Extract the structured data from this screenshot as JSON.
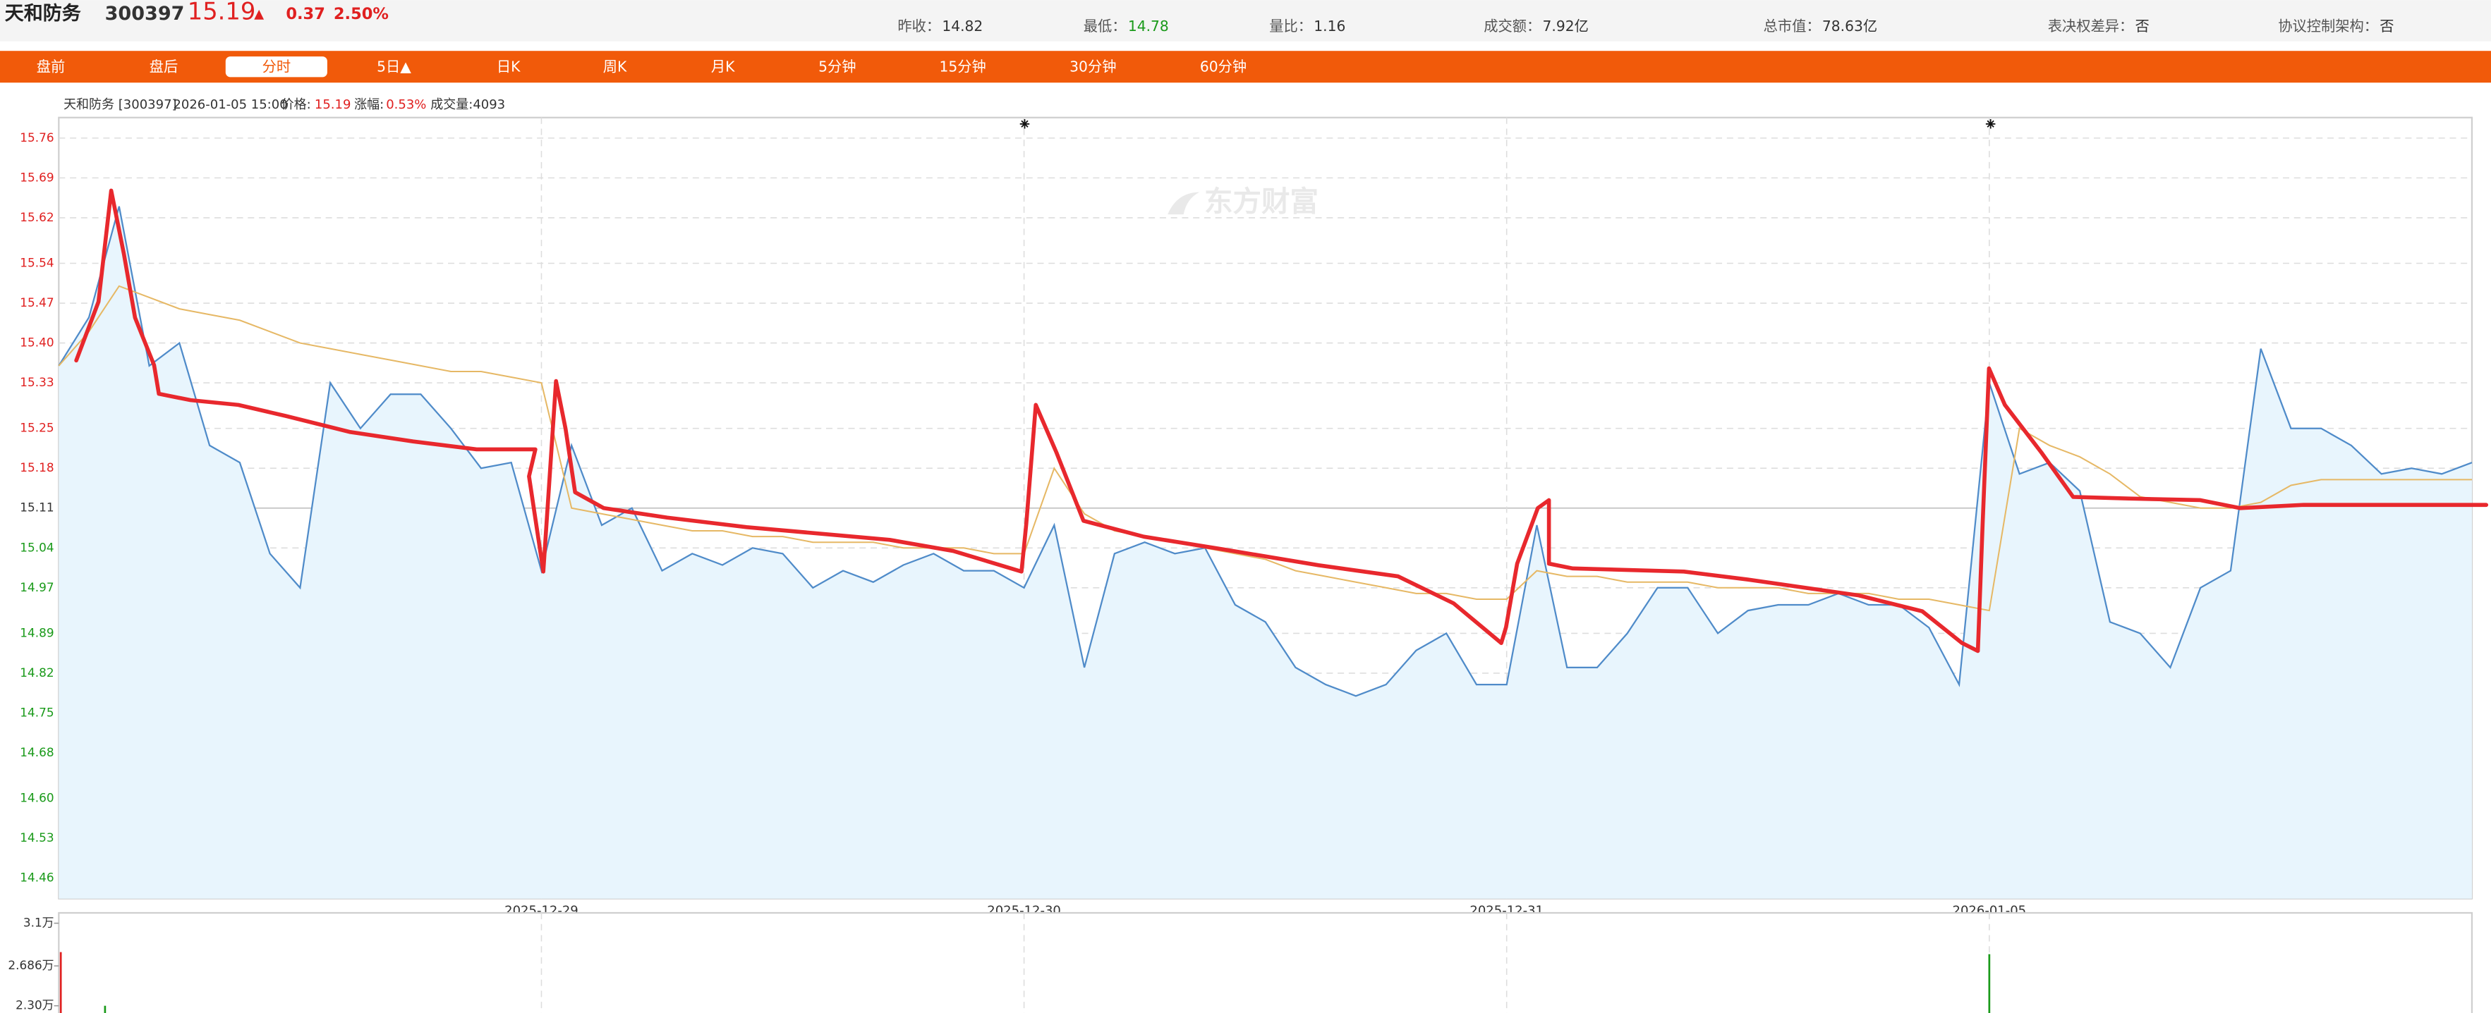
{
  "header": {
    "name": "天和防务",
    "code": "300397",
    "price": "15.19",
    "arrow": "▲",
    "change": "0.37",
    "change_pct": "2.50%",
    "stats": [
      {
        "label": "昨收：",
        "value": "14.82"
      },
      {
        "label": "最低：",
        "value": "14.78"
      },
      {
        "label": "量比：",
        "value": "1.16"
      },
      {
        "label": "成交额：",
        "value": "7.92亿"
      },
      {
        "label": "总市值：",
        "value": "78.63亿"
      },
      {
        "label": "表决权差异：",
        "value": "否"
      },
      {
        "label": "协议控制架构：",
        "value": "否"
      }
    ]
  },
  "tabs": [
    "盘前",
    "盘后",
    "分时",
    "5日▲",
    "日K",
    "周K",
    "月K",
    "5分钟",
    "15分钟",
    "30分钟",
    "60分钟"
  ],
  "selected_tab": 2,
  "info": {
    "name": "天和防务 [300397]",
    "time": "2026-01-05 15:00",
    "price_label": "价格:",
    "price": "15.19",
    "pct_label": "涨幅:",
    "pct": "0.53%",
    "volume": "成交量:4093"
  },
  "watermark": "东方财富",
  "chart_data": [
    {
      "type": "line",
      "xlim": [
        0,
        1200
      ],
      "x": [
        0,
        15,
        30,
        45,
        60,
        75,
        90,
        105,
        120,
        135,
        150,
        165,
        180,
        195,
        210,
        225,
        240,
        255,
        270,
        285,
        300,
        315,
        330,
        345,
        360,
        375,
        390,
        405,
        420,
        435,
        450,
        465,
        480,
        495,
        510,
        525,
        540,
        555,
        570,
        585,
        600,
        615,
        630,
        645,
        660,
        675,
        690,
        705,
        720,
        735,
        750,
        765,
        780,
        795,
        810,
        825,
        840,
        855,
        870,
        885,
        900,
        915,
        930,
        945,
        960,
        975,
        990,
        1005,
        1020,
        1035,
        1050,
        1065,
        1080,
        1095,
        1110,
        1125,
        1140,
        1155,
        1170,
        1185,
        1200
      ],
      "xticks": [
        {
          "value": 240,
          "label": "2025-12-29"
        },
        {
          "value": 480,
          "label": "2025-12-30"
        },
        {
          "value": 720,
          "label": "2025-12-31"
        },
        {
          "value": 960,
          "label": "2026-01-05"
        }
      ],
      "ylim": [
        14.424,
        15.796
      ],
      "yticks": [
        15.76,
        15.69,
        15.62,
        15.54,
        15.47,
        {
          "value": 15.4,
          "label": "15.40"
        },
        15.33,
        15.25,
        15.18,
        15.11,
        15.04,
        14.97,
        14.89,
        14.82,
        14.75,
        14.68,
        {
          "value": 14.6,
          "label": "14.60"
        },
        14.53,
        14.46
      ],
      "reference_tick": 9,
      "grid": true,
      "fill": "#e8f5fd",
      "series": [
        {
          "color": "#4f8bc9",
          "values": [
            15.36,
            15.445,
            15.64,
            15.36,
            15.4,
            15.22,
            15.19,
            15.03,
            14.97,
            15.33,
            15.25,
            15.31,
            15.31,
            15.25,
            15.18,
            15.19,
            15.0,
            15.22,
            15.08,
            15.11,
            15.0,
            15.03,
            15.01,
            15.04,
            15.03,
            14.97,
            15.0,
            14.98,
            15.01,
            15.03,
            15.0,
            15.0,
            14.97,
            15.08,
            14.83,
            15.03,
            15.05,
            15.03,
            15.04,
            14.94,
            14.91,
            14.83,
            14.8,
            14.78,
            14.8,
            14.86,
            14.89,
            14.8,
            14.8,
            15.08,
            14.83,
            14.83,
            14.89,
            14.97,
            14.97,
            14.89,
            14.93,
            14.94,
            14.94,
            14.96,
            14.94,
            14.94,
            14.9,
            14.8,
            15.33,
            15.17,
            15.19,
            15.14,
            14.91,
            14.89,
            14.83,
            14.97,
            15.0,
            15.39,
            15.25,
            15.25,
            15.22,
            15.17,
            15.18,
            15.17,
            15.19
          ]
        },
        {
          "color": "#e6b865",
          "values": [
            15.36,
            15.42,
            15.5,
            15.48,
            15.46,
            15.45,
            15.44,
            15.42,
            15.4,
            15.39,
            15.38,
            15.37,
            15.36,
            15.35,
            15.35,
            15.34,
            15.33,
            15.11,
            15.1,
            15.09,
            15.08,
            15.07,
            15.07,
            15.06,
            15.06,
            15.05,
            15.05,
            15.05,
            15.04,
            15.04,
            15.04,
            15.03,
            15.03,
            15.18,
            15.1,
            15.07,
            15.06,
            15.05,
            15.04,
            15.03,
            15.02,
            15.0,
            14.99,
            14.98,
            14.97,
            14.96,
            14.96,
            14.95,
            14.95,
            15.0,
            14.99,
            14.99,
            14.98,
            14.98,
            14.98,
            14.97,
            14.97,
            14.97,
            14.96,
            14.96,
            14.96,
            14.95,
            14.95,
            14.94,
            14.93,
            15.25,
            15.22,
            15.2,
            15.17,
            15.13,
            15.12,
            15.11,
            15.11,
            15.12,
            15.15,
            15.16,
            15.16,
            15.16,
            15.16,
            15.16,
            15.16
          ]
        }
      ]
    },
    {
      "type": "bar",
      "xlim": [
        0,
        1200
      ],
      "x": [
        1,
        23,
        960
      ],
      "values": [
        2.82,
        2.3,
        2.8
      ],
      "colors": [
        "#e02020",
        "#1a9a1a",
        "#1a9a1a"
      ],
      "ylim": [
        2.2,
        3.2
      ],
      "yticks": [
        {
          "value": 3.1,
          "label": "3.1万"
        },
        {
          "value": 2.686,
          "label": "2.686万"
        },
        {
          "value": 2.3,
          "label": "2.30万"
        }
      ]
    }
  ]
}
